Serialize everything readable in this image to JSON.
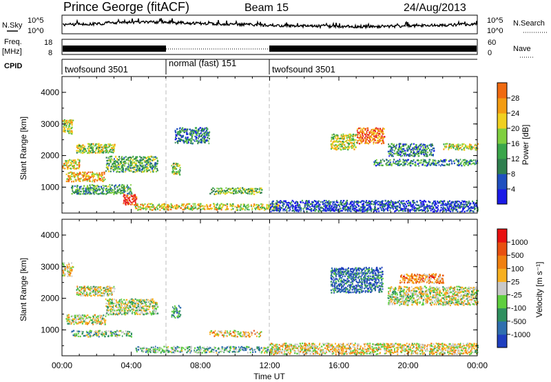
{
  "header": {
    "station": "Prince George (fitACF)",
    "beam": "Beam 15",
    "date": "24/Aug/2013"
  },
  "top_panels": {
    "nsky_label": "N.Sky",
    "nsearch_label": "N.Search",
    "nsky_ticks": [
      "10^5",
      "10^0"
    ],
    "freq_label_1": "Freq.",
    "freq_label_2": "[MHz]",
    "freq_ticks": [
      "18",
      "8"
    ],
    "nave_ticks": [
      "60",
      "0"
    ],
    "nave_label": "Nave",
    "cpid_label": "CPID",
    "cpid_segments": [
      {
        "label": "twofsound 3501",
        "start_h": 0,
        "end_h": 6
      },
      {
        "label": "normal (fast) 151",
        "start_h": 6,
        "end_h": 12
      },
      {
        "label": "twofsound 3501",
        "start_h": 12,
        "end_h": 24
      }
    ]
  },
  "colors": {
    "power_scale": [
      "#1a1ae6",
      "#1f4fbf",
      "#2f7f4f",
      "#3aa64a",
      "#7fcf3f",
      "#f0d020",
      "#f39c12",
      "#f06a10",
      "#e82020"
    ],
    "velocity_scale": [
      "#1f3fbf",
      "#2f6faf",
      "#2f8f5f",
      "#5fcf3f",
      "#c8c8c8",
      "#f7b020",
      "#f08010",
      "#e85010",
      "#e81010"
    ]
  },
  "chart_data": [
    {
      "type": "heatmap",
      "title": "",
      "xlabel": "",
      "ylabel": "Slant Range [km]",
      "ylim": [
        180,
        4500
      ],
      "yticks": [
        1000,
        2000,
        3000,
        4000
      ],
      "xlim": [
        0,
        24
      ],
      "colorbar": {
        "label": "Power [dB]",
        "ticks": [
          "4",
          "8",
          "12",
          "16",
          "20",
          "24",
          "28"
        ],
        "range": [
          0,
          32
        ]
      },
      "regions": [
        {
          "t0": 0.0,
          "t1": 0.6,
          "r0": 2700,
          "r1": 3150,
          "level": 0.55
        },
        {
          "t0": 0.0,
          "t1": 1.0,
          "r0": 1600,
          "r1": 1900,
          "level": 0.6
        },
        {
          "t0": 0.2,
          "t1": 2.5,
          "r0": 1200,
          "r1": 1500,
          "level": 0.7
        },
        {
          "t0": 0.5,
          "t1": 4.0,
          "r0": 800,
          "r1": 1100,
          "level": 0.35
        },
        {
          "t0": 0.8,
          "t1": 3.0,
          "r0": 2100,
          "r1": 2400,
          "level": 0.5
        },
        {
          "t0": 2.5,
          "t1": 5.5,
          "r0": 1500,
          "r1": 2000,
          "level": 0.4
        },
        {
          "t0": 3.5,
          "t1": 4.3,
          "r0": 450,
          "r1": 800,
          "level": 0.95
        },
        {
          "t0": 4.2,
          "t1": 12.5,
          "r0": 300,
          "r1": 500,
          "level": 0.6
        },
        {
          "t0": 6.3,
          "t1": 6.8,
          "r0": 1400,
          "r1": 1800,
          "level": 0.5
        },
        {
          "t0": 6.5,
          "t1": 8.5,
          "r0": 2400,
          "r1": 2900,
          "level": 0.25
        },
        {
          "t0": 8.5,
          "t1": 11.5,
          "r0": 800,
          "r1": 1000,
          "level": 0.45
        },
        {
          "t0": 15.5,
          "t1": 17.0,
          "r0": 2200,
          "r1": 2700,
          "level": 0.55
        },
        {
          "t0": 17.0,
          "t1": 18.6,
          "r0": 2400,
          "r1": 2900,
          "level": 0.8
        },
        {
          "t0": 18.8,
          "t1": 21.5,
          "r0": 2000,
          "r1": 2400,
          "level": 0.3
        },
        {
          "t0": 22.0,
          "t1": 24.0,
          "r0": 2200,
          "r1": 2400,
          "level": 0.5
        },
        {
          "t0": 18.0,
          "t1": 24.0,
          "r0": 1700,
          "r1": 1900,
          "level": 0.3
        },
        {
          "t0": 12.0,
          "t1": 24.0,
          "r0": 250,
          "r1": 600,
          "level": 0.15
        }
      ]
    },
    {
      "type": "heatmap",
      "title": "",
      "xlabel": "Time UT",
      "ylabel": "Slant Range [km]",
      "ylim": [
        180,
        4500
      ],
      "yticks": [
        1000,
        2000,
        3000,
        4000
      ],
      "xlim": [
        0,
        24
      ],
      "xticks": [
        "00:00",
        "04:00",
        "08:00",
        "12:00",
        "16:00",
        "20:00",
        "00:00"
      ],
      "colorbar": {
        "label": "Velocity [m s⁻¹]",
        "ticks": [
          "1000",
          "500",
          "100",
          "25",
          "-25",
          "-100",
          "-500",
          "-1000"
        ]
      },
      "regions": [
        {
          "t0": 0.0,
          "t1": 0.6,
          "r0": 2700,
          "r1": 3150,
          "level": 0.55
        },
        {
          "t0": 0.2,
          "t1": 2.5,
          "r0": 1200,
          "r1": 1500,
          "level": 0.5
        },
        {
          "t0": 0.8,
          "t1": 3.0,
          "r0": 2100,
          "r1": 2400,
          "level": 0.5
        },
        {
          "t0": 2.5,
          "t1": 5.5,
          "r0": 1500,
          "r1": 2000,
          "level": 0.45
        },
        {
          "t0": 0.5,
          "t1": 4.0,
          "r0": 800,
          "r1": 1000,
          "level": 0.4
        },
        {
          "t0": 4.2,
          "t1": 12.5,
          "r0": 300,
          "r1": 500,
          "level": 0.35
        },
        {
          "t0": 6.3,
          "t1": 6.8,
          "r0": 1400,
          "r1": 1800,
          "level": 0.3
        },
        {
          "t0": 8.5,
          "t1": 11.5,
          "r0": 800,
          "r1": 1000,
          "level": 0.6
        },
        {
          "t0": 15.5,
          "t1": 18.5,
          "r0": 2200,
          "r1": 3000,
          "level": 0.15
        },
        {
          "t0": 18.8,
          "t1": 24.0,
          "r0": 1800,
          "r1": 2400,
          "level": 0.5
        },
        {
          "t0": 19.5,
          "t1": 22.0,
          "r0": 2500,
          "r1": 2800,
          "level": 0.7
        },
        {
          "t0": 12.0,
          "t1": 24.0,
          "r0": 250,
          "r1": 600,
          "level": 0.55
        }
      ]
    }
  ]
}
